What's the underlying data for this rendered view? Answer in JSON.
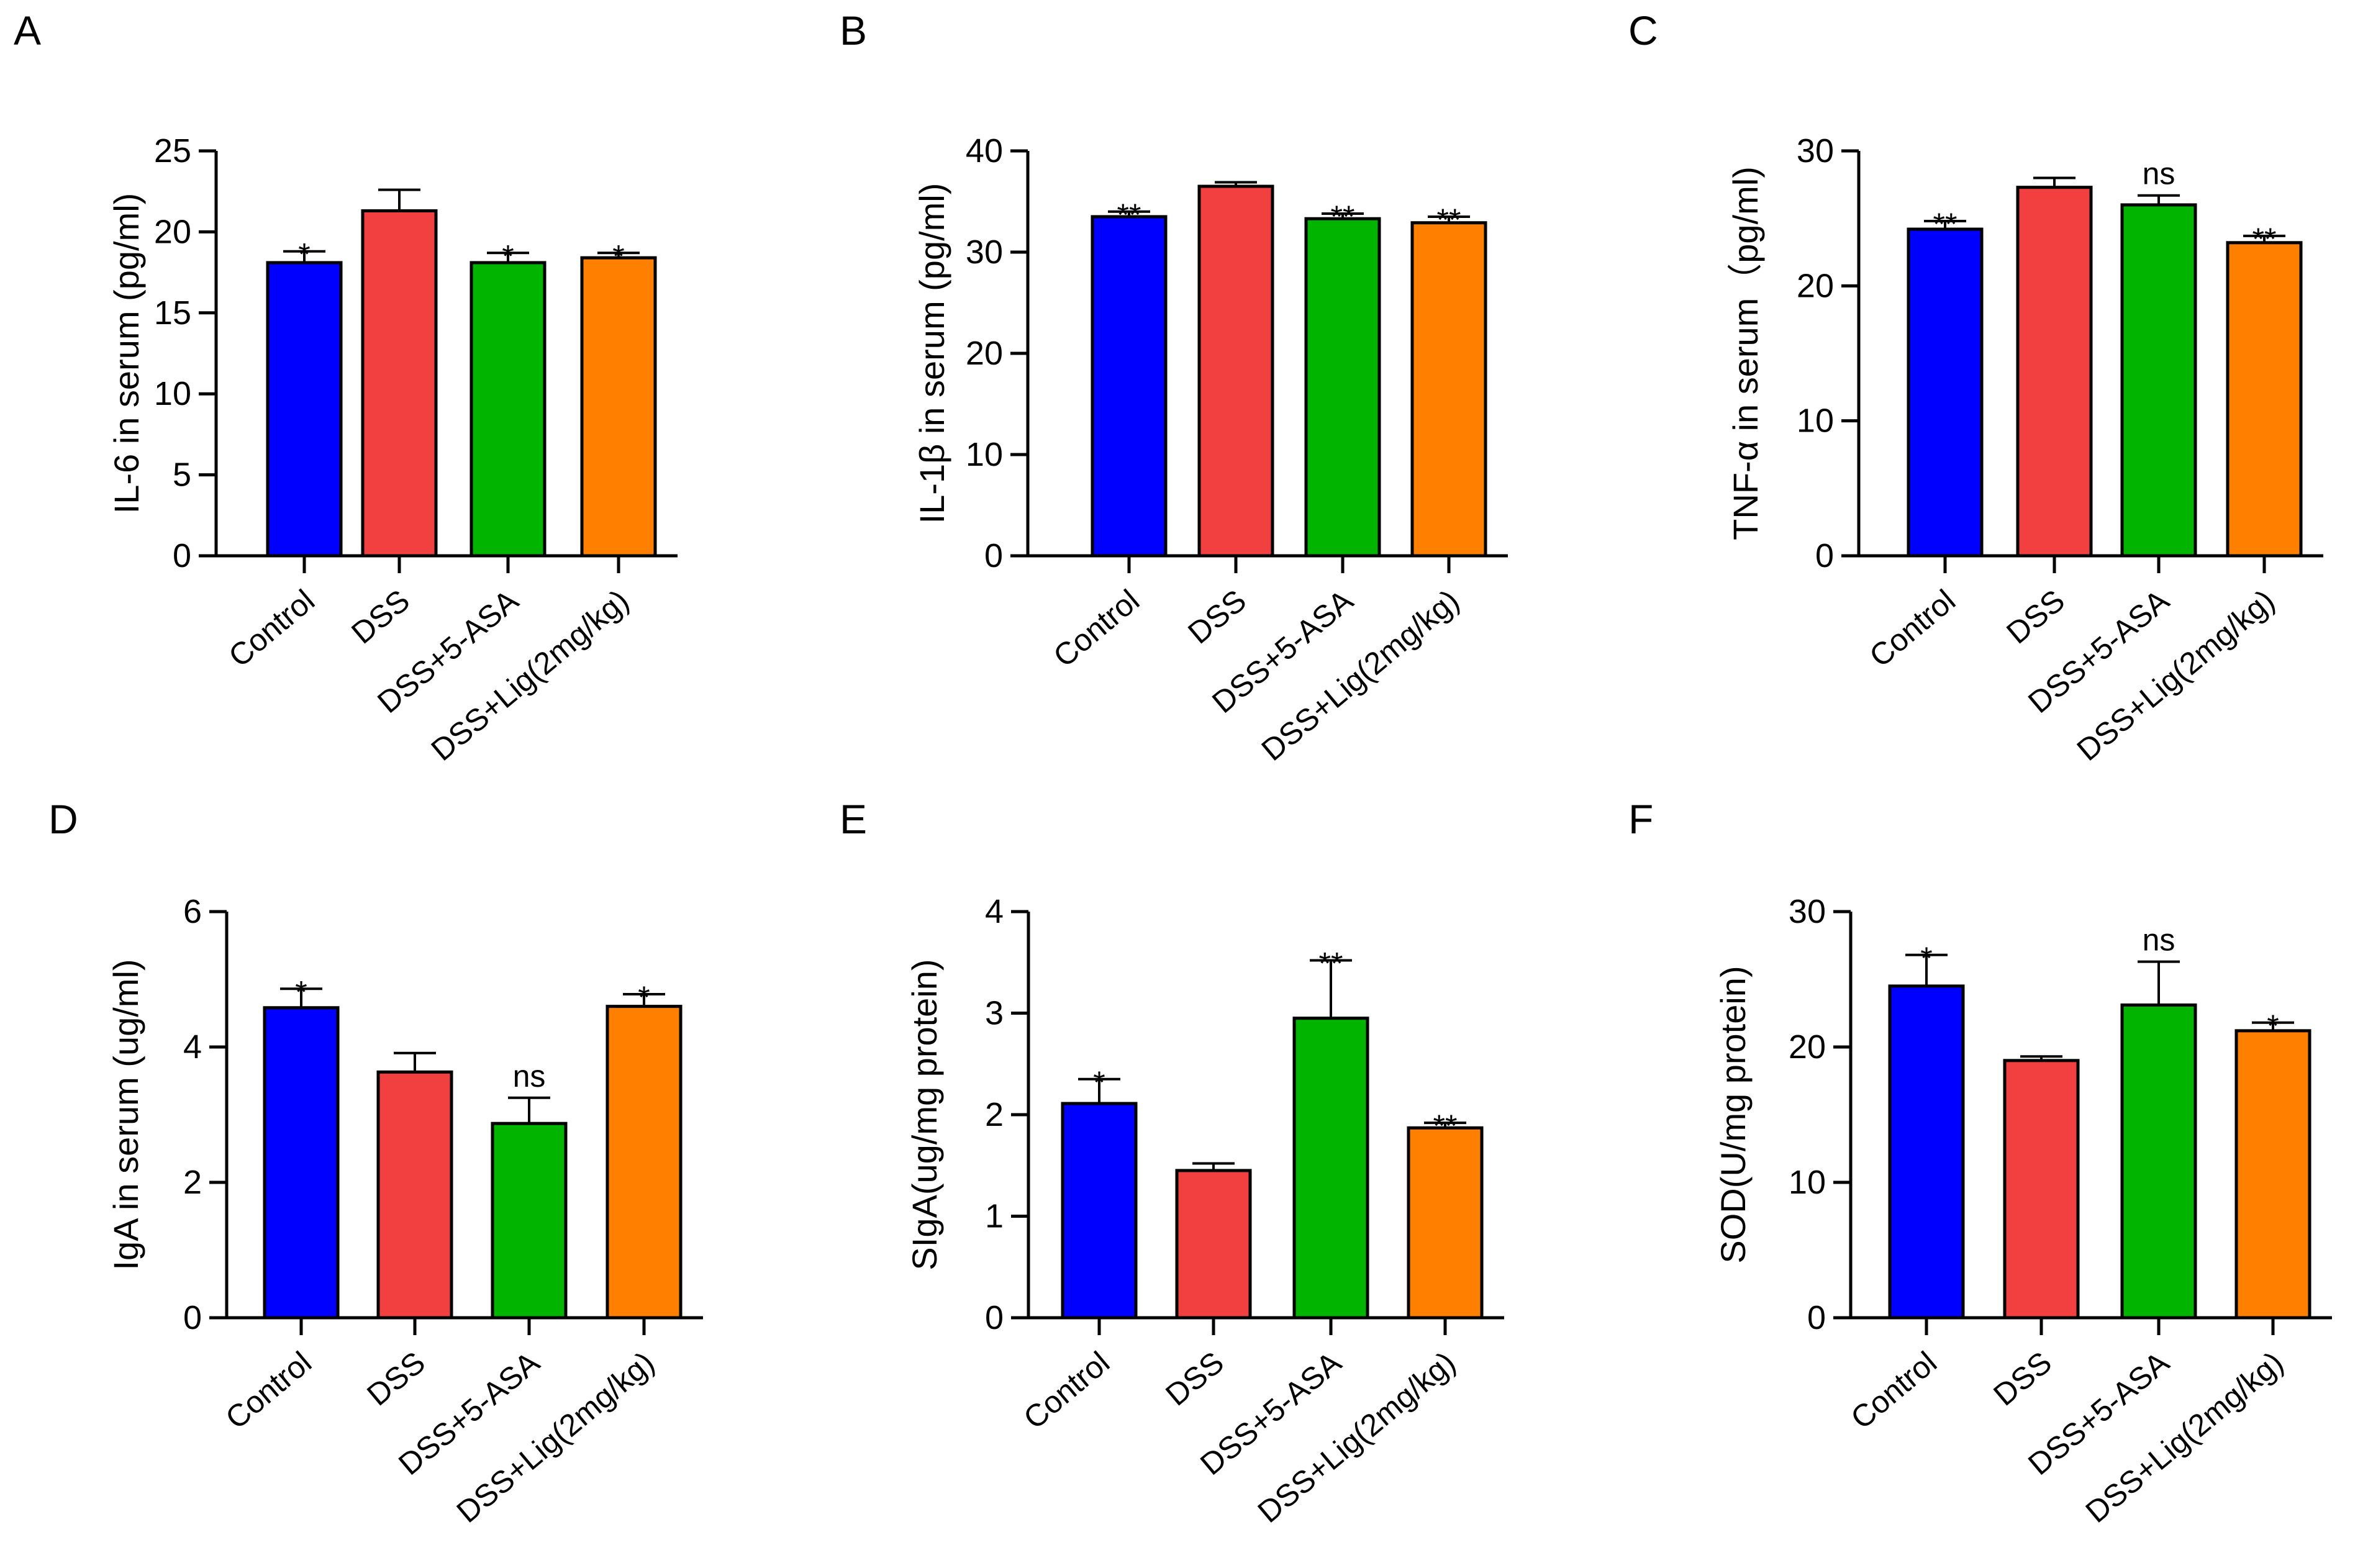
{
  "chart_data": [
    {
      "type": "bar",
      "panel": "A",
      "ylabel": "IL-6 in serum (pg/ml)",
      "ylim": [
        0,
        25
      ],
      "yticks": [
        0,
        5,
        10,
        15,
        20,
        25
      ],
      "ytick_labels": [
        "0",
        "5",
        "10",
        "15",
        "20",
        "25"
      ],
      "categories": [
        "Control",
        "DSS",
        "DSS+5-ASA",
        "DSS+Lig(2mg/kg)"
      ],
      "values": [
        18.1,
        21.3,
        18.1,
        18.4
      ],
      "errors": [
        0.7,
        1.3,
        0.6,
        0.3
      ],
      "significance": [
        "*",
        "",
        "*",
        "*"
      ],
      "colors": [
        "#0000ff",
        "#f23f3f",
        "#00b400",
        "#ff7f00"
      ]
    },
    {
      "type": "bar",
      "panel": "B",
      "ylabel": "IL-1β in serum (pg/ml)",
      "ylim": [
        0,
        40
      ],
      "yticks": [
        0,
        10,
        20,
        30,
        40
      ],
      "ytick_labels": [
        "0",
        "10",
        "20",
        "30",
        "40"
      ],
      "categories": [
        "Control",
        "DSS",
        "DSS+5-ASA",
        "DSS+Lig(2mg/kg)"
      ],
      "values": [
        33.5,
        36.5,
        33.3,
        32.9
      ],
      "errors": [
        0.5,
        0.4,
        0.5,
        0.6
      ],
      "significance": [
        "**",
        "",
        "**",
        "**"
      ],
      "colors": [
        "#0000ff",
        "#f23f3f",
        "#00b400",
        "#ff7f00"
      ]
    },
    {
      "type": "bar",
      "panel": "C",
      "ylabel": "TNF-α in serum（pg/ml)",
      "ylim": [
        0,
        30
      ],
      "yticks": [
        0,
        10,
        20,
        30
      ],
      "ytick_labels": [
        "0",
        "10",
        "20",
        "30"
      ],
      "categories": [
        "Control",
        "DSS",
        "DSS+5-ASA",
        "DSS+Lig(2mg/kg)"
      ],
      "values": [
        24.2,
        27.3,
        26.0,
        23.2
      ],
      "errors": [
        0.6,
        0.7,
        0.7,
        0.5
      ],
      "significance": [
        "**",
        "",
        "ns",
        "**"
      ],
      "colors": [
        "#0000ff",
        "#f23f3f",
        "#00b400",
        "#ff7f00"
      ]
    },
    {
      "type": "bar",
      "panel": "D",
      "ylabel": "IgA in serum (ug/ml)",
      "ylim": [
        0,
        6
      ],
      "yticks": [
        0,
        2,
        4,
        6
      ],
      "ytick_labels": [
        "0",
        "2",
        "4",
        "6"
      ],
      "categories": [
        "Control",
        "DSS",
        "DSS+5-ASA",
        "DSS+Lig(2mg/kg)"
      ],
      "values": [
        4.58,
        3.63,
        2.87,
        4.6
      ],
      "errors": [
        0.28,
        0.28,
        0.38,
        0.18
      ],
      "significance": [
        "*",
        "",
        "ns",
        "*"
      ],
      "colors": [
        "#0000ff",
        "#f23f3f",
        "#00b400",
        "#ff7f00"
      ]
    },
    {
      "type": "bar",
      "panel": "E",
      "ylabel": "SIgA(ug/mg protein)",
      "ylim": [
        0,
        4
      ],
      "yticks": [
        0,
        1,
        2,
        3,
        4
      ],
      "ytick_labels": [
        "0",
        "1",
        "2",
        "3",
        "4"
      ],
      "categories": [
        "Control",
        "DSS",
        "DSS+5-ASA",
        "DSS+Lig(2mg/kg)"
      ],
      "values": [
        2.11,
        1.45,
        2.95,
        1.87
      ],
      "errors": [
        0.24,
        0.07,
        0.57,
        0.05
      ],
      "significance": [
        "*",
        "",
        "**",
        "**"
      ],
      "colors": [
        "#0000ff",
        "#f23f3f",
        "#00b400",
        "#ff7f00"
      ]
    },
    {
      "type": "bar",
      "panel": "F",
      "ylabel": "SOD(U/mg protein)",
      "ylim": [
        0,
        30
      ],
      "yticks": [
        0,
        10,
        20,
        30
      ],
      "ytick_labels": [
        "0",
        "10",
        "20",
        "30"
      ],
      "categories": [
        "Control",
        "DSS",
        "DSS+5-ASA",
        "DSS+Lig(2mg/kg)"
      ],
      "values": [
        24.5,
        19.0,
        23.1,
        21.2
      ],
      "errors": [
        2.3,
        0.3,
        3.2,
        0.6
      ],
      "significance": [
        "*",
        "",
        "ns",
        "*"
      ],
      "colors": [
        "#0000ff",
        "#f23f3f",
        "#00b400",
        "#ff7f00"
      ]
    }
  ]
}
